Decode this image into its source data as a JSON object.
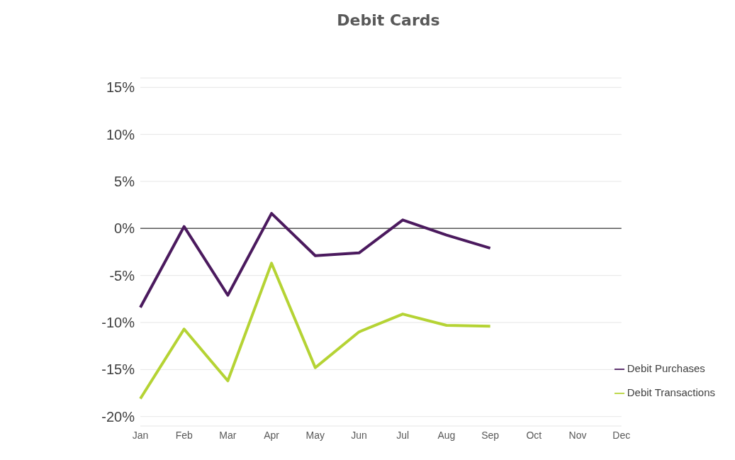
{
  "chart_data": {
    "type": "line",
    "title": "Debit Cards",
    "categories": [
      "Jan",
      "Feb",
      "Mar",
      "Apr",
      "May",
      "Jun",
      "Jul",
      "Aug",
      "Sep",
      "Oct",
      "Nov",
      "Dec"
    ],
    "series": [
      {
        "name": "Debit Purchases",
        "color": "#4b1a5e",
        "values": [
          -8.4,
          0.2,
          -7.1,
          1.6,
          -2.9,
          -2.6,
          0.9,
          -0.7,
          -2.1,
          null,
          null,
          null
        ]
      },
      {
        "name": "Debit Transactions",
        "color": "#b5d334",
        "values": [
          -18.1,
          -10.7,
          -16.2,
          -3.7,
          -14.8,
          -11,
          -9.1,
          -10.3,
          -10.4,
          null,
          null,
          null
        ]
      }
    ],
    "ylim": [
      -21,
      16
    ],
    "yticks": [
      {
        "value": -20,
        "label": "-20%"
      },
      {
        "value": -15,
        "label": "-15%"
      },
      {
        "value": -10,
        "label": "-10%"
      },
      {
        "value": -5,
        "label": "-5%"
      },
      {
        "value": 0,
        "label": "0%"
      },
      {
        "value": 5,
        "label": "5%"
      },
      {
        "value": 10,
        "label": "10%"
      },
      {
        "value": 15,
        "label": "15%"
      }
    ],
    "ref_lines": [
      {
        "axis": "y",
        "value": 0,
        "color": "#595959"
      }
    ],
    "grid": "y",
    "legend": "bottom right",
    "marker": "none",
    "line_style": "solid"
  }
}
